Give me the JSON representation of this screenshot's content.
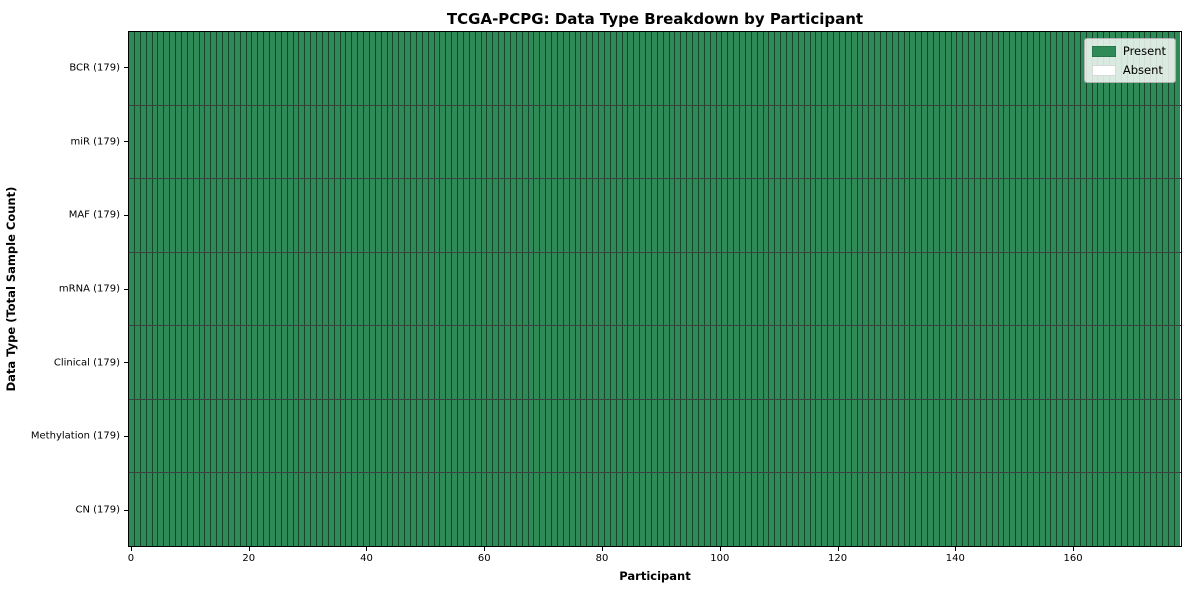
{
  "chart_data": {
    "type": "heatmap",
    "title": "TCGA-PCPG: Data Type Breakdown by Participant",
    "xlabel": "Participant",
    "ylabel": "Data Type (Total Sample Count)",
    "n_participants": 179,
    "xlim": [
      -0.5,
      178.5
    ],
    "x_ticks": [
      0,
      20,
      40,
      60,
      80,
      100,
      120,
      140,
      160
    ],
    "rows": [
      {
        "label": "BCR (179)",
        "data_type": "BCR",
        "total_sample_count": 179,
        "present_count": 179,
        "absent_count": 0
      },
      {
        "label": "miR (179)",
        "data_type": "miR",
        "total_sample_count": 179,
        "present_count": 179,
        "absent_count": 0
      },
      {
        "label": "MAF (179)",
        "data_type": "MAF",
        "total_sample_count": 179,
        "present_count": 179,
        "absent_count": 0
      },
      {
        "label": "mRNA (179)",
        "data_type": "mRNA",
        "total_sample_count": 179,
        "present_count": 179,
        "absent_count": 0
      },
      {
        "label": "Clinical (179)",
        "data_type": "Clinical",
        "total_sample_count": 179,
        "present_count": 179,
        "absent_count": 0
      },
      {
        "label": "Methylation (179)",
        "data_type": "Methylation",
        "total_sample_count": 179,
        "present_count": 179,
        "absent_count": 0
      },
      {
        "label": "CN (179)",
        "data_type": "CN",
        "total_sample_count": 179,
        "present_count": 179,
        "absent_count": 0
      }
    ],
    "legend": [
      {
        "label": "Present",
        "color": "#2e8b57"
      },
      {
        "label": "Absent",
        "color": "#ffffff"
      }
    ],
    "colors": {
      "present": "#2e8b57",
      "absent": "#ffffff",
      "cell_grid": "rgba(0,0,0,0.5)",
      "row_separator": "rgba(0,0,0,0.75)",
      "spine": "#000000"
    },
    "grid": "cell-borders",
    "legend_position": "upper right"
  }
}
